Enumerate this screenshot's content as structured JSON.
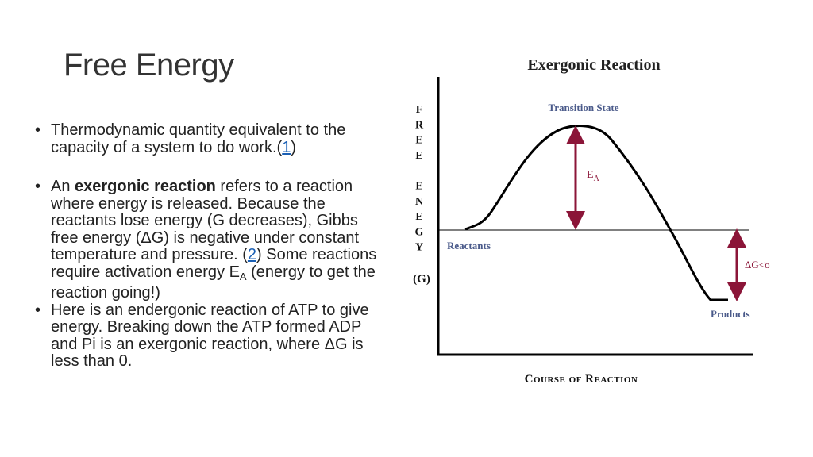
{
  "slide": {
    "title": "Free Energy",
    "bullets": {
      "b1": {
        "text": "Thermodynamic quantity equivalent to the capacity of a system to do work.(",
        "ref": "1",
        "after": ")"
      },
      "b2": {
        "pre": "An ",
        "bold": "exergonic reaction",
        "mid": " refers to a reaction where energy is released. Because the reactants lose energy (G decreases), Gibbs free energy (ΔG) is negative under constant temperature and pressure. (",
        "ref": "2",
        "post": ") Some reactions require activation energy E",
        "sub": "A",
        "end": " (energy to get the reaction going!)"
      },
      "b3": {
        "text": "Here is an endergonic reaction of ATP to give energy. Breaking down the ATP formed ADP and Pi is an exergonic reaction, where ΔG is less than 0."
      }
    },
    "bullet_glyph": "•"
  },
  "diagram": {
    "title": "Exergonic Reaction",
    "y_axis_letters": [
      "F",
      "R",
      "E",
      "E",
      "",
      "E",
      "N",
      "E",
      "G",
      "Y"
    ],
    "y_axis_unit": "(G)",
    "x_axis_label": "Course of Reaction",
    "labels": {
      "transition_state": "Transition State",
      "ea_main": "E",
      "ea_sub": "A",
      "reactants": "Reactants",
      "delta_g": "ΔG<o",
      "products": "Products"
    },
    "colors": {
      "arrow": "#8b1538",
      "label_blue": "#4a5a8a",
      "curve": "#000000"
    }
  }
}
